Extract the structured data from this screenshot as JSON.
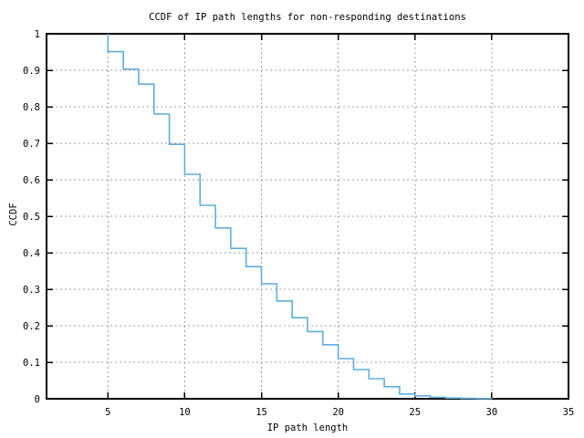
{
  "figure": {
    "background": "#ffffff",
    "text_color": "#000000"
  },
  "chart_data": {
    "type": "line",
    "style": "step-function-ccdf",
    "title": "CCDF of IP path lengths for non-responding destinations",
    "xlabel": "IP path length",
    "ylabel": "CCDF",
    "xlim": [
      1,
      35
    ],
    "ylim": [
      0,
      1
    ],
    "xticks": [
      5,
      10,
      15,
      20,
      25,
      30,
      35
    ],
    "xtick_labels": [
      "5",
      "10",
      "15",
      "20",
      "25",
      "30",
      "35"
    ],
    "yticks": [
      0,
      0.1,
      0.2,
      0.3,
      0.4,
      0.5,
      0.6,
      0.7,
      0.8,
      0.9,
      1
    ],
    "ytick_labels": [
      "0",
      "0.1",
      "0.2",
      "0.3",
      "0.4",
      "0.5",
      "0.6",
      "0.7",
      "0.8",
      "0.9",
      "1"
    ],
    "grid": {
      "x_values": [
        5,
        10,
        15,
        20,
        25,
        30
      ],
      "y_values": [
        0.1,
        0.2,
        0.3,
        0.4,
        0.5,
        0.6,
        0.7,
        0.8,
        0.9
      ],
      "color": "#a0a0a0",
      "dash": "2 3"
    },
    "axis_color": "#000000",
    "series": [
      {
        "name": "ccdf-of-ip-path-length",
        "color": "#5FAEDF",
        "start_point": {
          "x": 5,
          "y": 1.0
        },
        "steps": [
          [
            5,
            0.951
          ],
          [
            6,
            0.903
          ],
          [
            7,
            0.862
          ],
          [
            8,
            0.78
          ],
          [
            9,
            0.697
          ],
          [
            10,
            0.615
          ],
          [
            11,
            0.53
          ],
          [
            12,
            0.468
          ],
          [
            13,
            0.412
          ],
          [
            14,
            0.362
          ],
          [
            15,
            0.315
          ],
          [
            16,
            0.268
          ],
          [
            17,
            0.222
          ],
          [
            18,
            0.184
          ],
          [
            19,
            0.148
          ],
          [
            20,
            0.11
          ],
          [
            21,
            0.08
          ],
          [
            22,
            0.055
          ],
          [
            23,
            0.033
          ],
          [
            24,
            0.013
          ],
          [
            25,
            0.008
          ],
          [
            26,
            0.004
          ],
          [
            27,
            0.002
          ],
          [
            28,
            0.001
          ],
          [
            29,
            0.0005
          ],
          [
            30,
            0
          ]
        ]
      }
    ]
  }
}
